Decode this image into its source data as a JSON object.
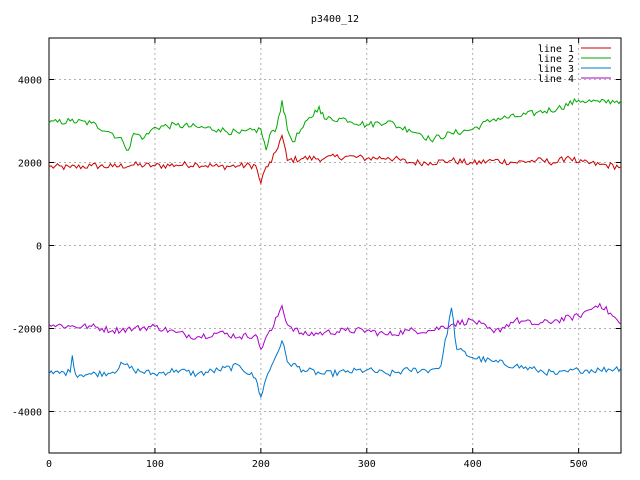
{
  "chart_data": {
    "type": "line",
    "title": "p3400_12",
    "xlim": [
      0,
      540
    ],
    "ylim": [
      -5000,
      5000
    ],
    "x_ticks": [
      0,
      100,
      200,
      300,
      400,
      500
    ],
    "y_ticks": [
      -4000,
      -2000,
      0,
      2000,
      4000
    ],
    "grid": true,
    "legend_position": "top-right",
    "series": [
      {
        "name": "line 1",
        "color": "#cc0000",
        "points": [
          [
            0,
            1900
          ],
          [
            20,
            1880
          ],
          [
            40,
            1920
          ],
          [
            60,
            1900
          ],
          [
            80,
            1940
          ],
          [
            100,
            1920
          ],
          [
            120,
            1940
          ],
          [
            140,
            1960
          ],
          [
            160,
            1900
          ],
          [
            180,
            1920
          ],
          [
            195,
            1930
          ],
          [
            200,
            1500
          ],
          [
            205,
            1900
          ],
          [
            210,
            2000
          ],
          [
            220,
            2650
          ],
          [
            225,
            2050
          ],
          [
            240,
            2100
          ],
          [
            260,
            2100
          ],
          [
            280,
            2150
          ],
          [
            300,
            2100
          ],
          [
            320,
            2120
          ],
          [
            340,
            2000
          ],
          [
            360,
            2000
          ],
          [
            380,
            2050
          ],
          [
            400,
            1980
          ],
          [
            420,
            2050
          ],
          [
            440,
            2000
          ],
          [
            460,
            2050
          ],
          [
            480,
            2000
          ],
          [
            490,
            2150
          ],
          [
            500,
            2000
          ],
          [
            520,
            1950
          ],
          [
            540,
            1900
          ]
        ]
      },
      {
        "name": "line 2",
        "color": "#00aa00",
        "points": [
          [
            0,
            2950
          ],
          [
            20,
            3000
          ],
          [
            40,
            2950
          ],
          [
            60,
            2700
          ],
          [
            70,
            2500
          ],
          [
            75,
            2300
          ],
          [
            80,
            2700
          ],
          [
            90,
            2600
          ],
          [
            100,
            2850
          ],
          [
            120,
            2900
          ],
          [
            140,
            2850
          ],
          [
            160,
            2800
          ],
          [
            180,
            2700
          ],
          [
            200,
            2800
          ],
          [
            205,
            2300
          ],
          [
            210,
            2750
          ],
          [
            215,
            2850
          ],
          [
            220,
            3500
          ],
          [
            225,
            2800
          ],
          [
            230,
            2500
          ],
          [
            240,
            2850
          ],
          [
            255,
            3350
          ],
          [
            260,
            3050
          ],
          [
            280,
            3050
          ],
          [
            300,
            2900
          ],
          [
            320,
            3000
          ],
          [
            330,
            2850
          ],
          [
            340,
            2800
          ],
          [
            350,
            2700
          ],
          [
            360,
            2550
          ],
          [
            380,
            2700
          ],
          [
            400,
            2800
          ],
          [
            420,
            3050
          ],
          [
            440,
            3100
          ],
          [
            460,
            3200
          ],
          [
            480,
            3300
          ],
          [
            500,
            3500
          ],
          [
            520,
            3450
          ],
          [
            540,
            3500
          ]
        ]
      },
      {
        "name": "line 3",
        "color": "#0077cc",
        "points": [
          [
            0,
            -3100
          ],
          [
            20,
            -3050
          ],
          [
            22,
            -2650
          ],
          [
            25,
            -3100
          ],
          [
            40,
            -3100
          ],
          [
            60,
            -3050
          ],
          [
            70,
            -2850
          ],
          [
            80,
            -3000
          ],
          [
            100,
            -3100
          ],
          [
            120,
            -3000
          ],
          [
            140,
            -3100
          ],
          [
            160,
            -3000
          ],
          [
            180,
            -2900
          ],
          [
            195,
            -3200
          ],
          [
            200,
            -3650
          ],
          [
            205,
            -3200
          ],
          [
            210,
            -2900
          ],
          [
            220,
            -2300
          ],
          [
            225,
            -2800
          ],
          [
            240,
            -3000
          ],
          [
            260,
            -3100
          ],
          [
            280,
            -3050
          ],
          [
            300,
            -3000
          ],
          [
            320,
            -3100
          ],
          [
            340,
            -3000
          ],
          [
            360,
            -3000
          ],
          [
            370,
            -2900
          ],
          [
            380,
            -1500
          ],
          [
            385,
            -2500
          ],
          [
            400,
            -2700
          ],
          [
            420,
            -2800
          ],
          [
            440,
            -2900
          ],
          [
            460,
            -3000
          ],
          [
            480,
            -3100
          ],
          [
            500,
            -3000
          ],
          [
            520,
            -3000
          ],
          [
            540,
            -2950
          ]
        ]
      },
      {
        "name": "line 4",
        "color": "#aa00cc",
        "points": [
          [
            0,
            -1900
          ],
          [
            20,
            -1950
          ],
          [
            40,
            -1950
          ],
          [
            60,
            -2050
          ],
          [
            80,
            -2000
          ],
          [
            100,
            -1950
          ],
          [
            120,
            -2100
          ],
          [
            140,
            -2200
          ],
          [
            160,
            -2100
          ],
          [
            180,
            -2200
          ],
          [
            195,
            -2150
          ],
          [
            200,
            -2500
          ],
          [
            205,
            -2200
          ],
          [
            210,
            -2050
          ],
          [
            220,
            -1450
          ],
          [
            225,
            -1900
          ],
          [
            240,
            -2150
          ],
          [
            260,
            -2100
          ],
          [
            280,
            -2050
          ],
          [
            300,
            -2050
          ],
          [
            320,
            -2150
          ],
          [
            340,
            -2050
          ],
          [
            360,
            -2050
          ],
          [
            380,
            -1900
          ],
          [
            400,
            -1800
          ],
          [
            420,
            -2100
          ],
          [
            440,
            -1800
          ],
          [
            460,
            -1900
          ],
          [
            480,
            -1800
          ],
          [
            500,
            -1700
          ],
          [
            510,
            -1550
          ],
          [
            520,
            -1400
          ],
          [
            540,
            -1900
          ]
        ]
      }
    ]
  }
}
